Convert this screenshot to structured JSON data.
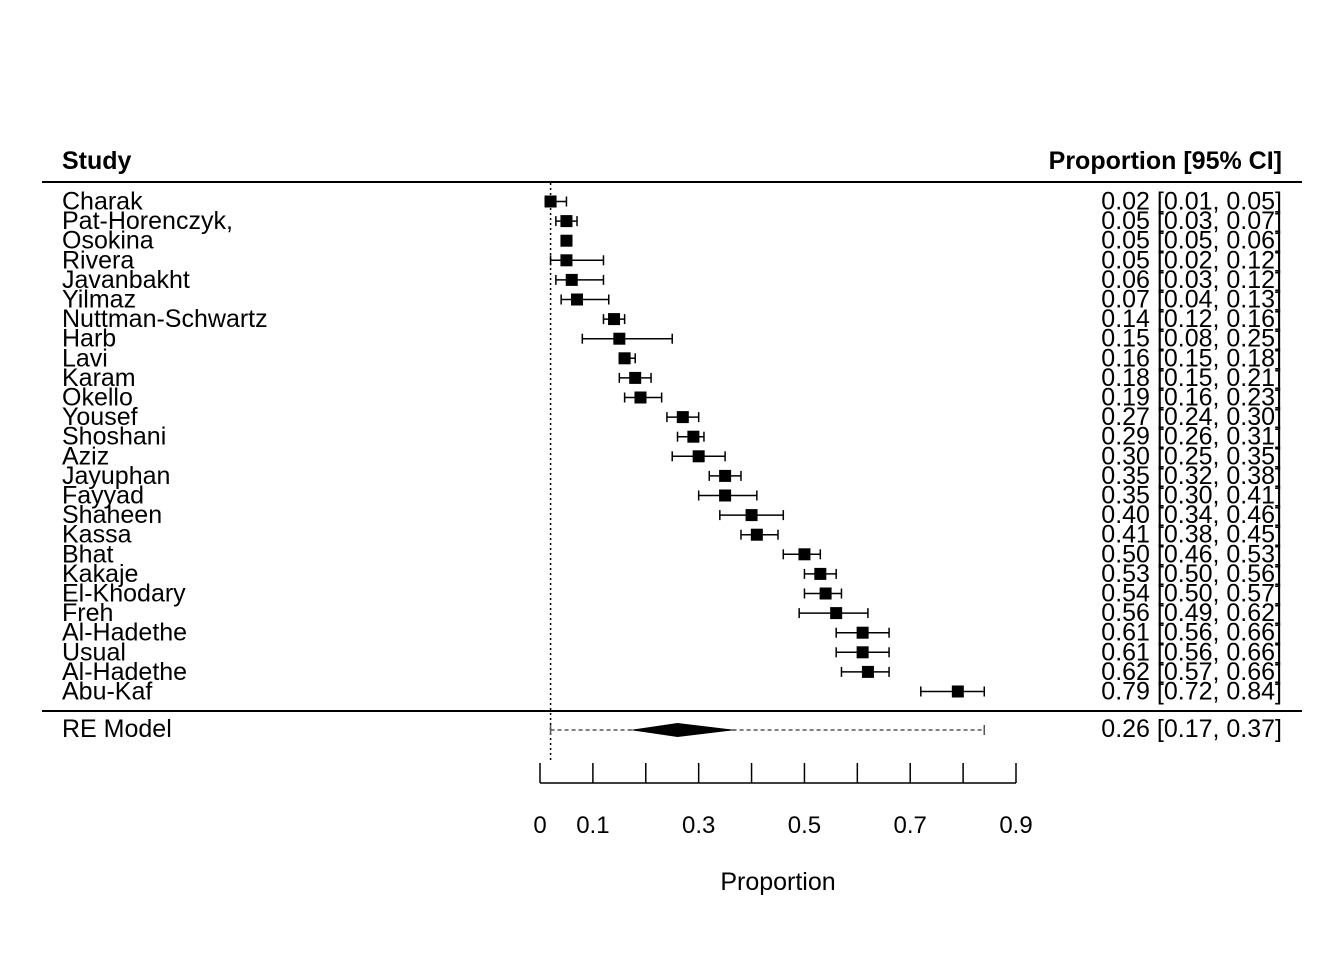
{
  "chart_data": {
    "type": "forest",
    "study_header": "Study",
    "estimate_header": "Proportion [95% CI]",
    "xlabel": "Proportion",
    "xlim": [
      0,
      0.9
    ],
    "xticks": [
      0,
      0.1,
      0.2,
      0.3,
      0.4,
      0.5,
      0.6,
      0.7,
      0.8,
      0.9
    ],
    "xtick_labels": [
      "0",
      "0.1",
      "",
      "0.3",
      "",
      "0.5",
      "",
      "0.7",
      "",
      "0.9"
    ],
    "reference_line": 0.02,
    "studies": [
      {
        "name": "Charak",
        "est": 0.02,
        "lo": 0.01,
        "hi": 0.05,
        "label": "0.02 [0.01, 0.05]"
      },
      {
        "name": "Pat-Horenczyk,",
        "est": 0.05,
        "lo": 0.03,
        "hi": 0.07,
        "label": "0.05 [0.03, 0.07]"
      },
      {
        "name": "Osokina",
        "est": 0.05,
        "lo": 0.05,
        "hi": 0.06,
        "label": "0.05 [0.05, 0.06]"
      },
      {
        "name": "Rivera",
        "est": 0.05,
        "lo": 0.02,
        "hi": 0.12,
        "label": "0.05 [0.02, 0.12]"
      },
      {
        "name": "Javanbakht",
        "est": 0.06,
        "lo": 0.03,
        "hi": 0.12,
        "label": "0.06 [0.03, 0.12]"
      },
      {
        "name": "Yilmaz",
        "est": 0.07,
        "lo": 0.04,
        "hi": 0.13,
        "label": "0.07 [0.04, 0.13]"
      },
      {
        "name": "Nuttman-Schwartz",
        "est": 0.14,
        "lo": 0.12,
        "hi": 0.16,
        "label": "0.14 [0.12, 0.16]"
      },
      {
        "name": "Harb",
        "est": 0.15,
        "lo": 0.08,
        "hi": 0.25,
        "label": "0.15 [0.08, 0.25]"
      },
      {
        "name": "Lavi",
        "est": 0.16,
        "lo": 0.15,
        "hi": 0.18,
        "label": "0.16 [0.15, 0.18]"
      },
      {
        "name": "Karam",
        "est": 0.18,
        "lo": 0.15,
        "hi": 0.21,
        "label": "0.18 [0.15, 0.21]"
      },
      {
        "name": "Okello",
        "est": 0.19,
        "lo": 0.16,
        "hi": 0.23,
        "label": "0.19 [0.16, 0.23]"
      },
      {
        "name": "Yousef",
        "est": 0.27,
        "lo": 0.24,
        "hi": 0.3,
        "label": "0.27 [0.24, 0.30]"
      },
      {
        "name": "Shoshani",
        "est": 0.29,
        "lo": 0.26,
        "hi": 0.31,
        "label": "0.29 [0.26, 0.31]"
      },
      {
        "name": "Aziz",
        "est": 0.3,
        "lo": 0.25,
        "hi": 0.35,
        "label": "0.30 [0.25, 0.35]"
      },
      {
        "name": "Jayuphan",
        "est": 0.35,
        "lo": 0.32,
        "hi": 0.38,
        "label": "0.35 [0.32, 0.38]"
      },
      {
        "name": "Fayyad",
        "est": 0.35,
        "lo": 0.3,
        "hi": 0.41,
        "label": "0.35 [0.30, 0.41]"
      },
      {
        "name": "Shaheen",
        "est": 0.4,
        "lo": 0.34,
        "hi": 0.46,
        "label": "0.40 [0.34, 0.46]"
      },
      {
        "name": "Kassa",
        "est": 0.41,
        "lo": 0.38,
        "hi": 0.45,
        "label": "0.41 [0.38, 0.45]"
      },
      {
        "name": "Bhat",
        "est": 0.5,
        "lo": 0.46,
        "hi": 0.53,
        "label": "0.50 [0.46, 0.53]"
      },
      {
        "name": "Kakaje",
        "est": 0.53,
        "lo": 0.5,
        "hi": 0.56,
        "label": "0.53 [0.50, 0.56]"
      },
      {
        "name": "El-Khodary",
        "est": 0.54,
        "lo": 0.5,
        "hi": 0.57,
        "label": "0.54 [0.50, 0.57]"
      },
      {
        "name": "Freh",
        "est": 0.56,
        "lo": 0.49,
        "hi": 0.62,
        "label": "0.56 [0.49, 0.62]"
      },
      {
        "name": "Al-Hadethe",
        "est": 0.61,
        "lo": 0.56,
        "hi": 0.66,
        "label": "0.61 [0.56, 0.66]"
      },
      {
        "name": "Usual",
        "est": 0.61,
        "lo": 0.56,
        "hi": 0.66,
        "label": "0.61 [0.56, 0.66]"
      },
      {
        "name": "Al-Hadethe",
        "est": 0.62,
        "lo": 0.57,
        "hi": 0.66,
        "label": "0.62 [0.57, 0.66]"
      },
      {
        "name": "Abu-Kaf",
        "est": 0.79,
        "lo": 0.72,
        "hi": 0.84,
        "label": "0.79 [0.72, 0.84]"
      }
    ],
    "summary": {
      "name": "RE Model",
      "est": 0.26,
      "lo": 0.17,
      "hi": 0.37,
      "pi_lo": 0.02,
      "pi_hi": 0.84,
      "label": "0.26 [0.17, 0.37]"
    }
  }
}
